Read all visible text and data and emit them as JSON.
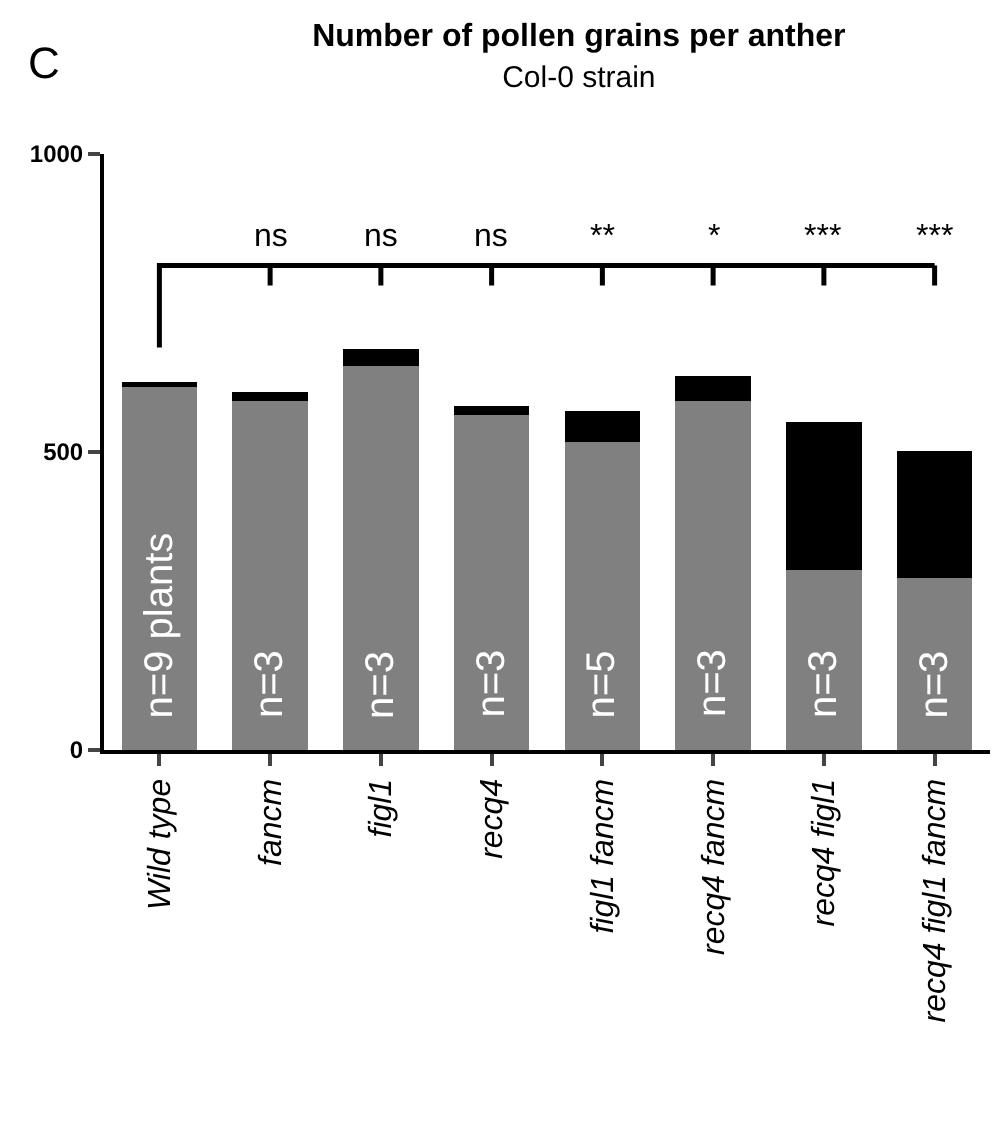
{
  "chart_data": {
    "type": "bar",
    "stacked": true,
    "title": "Number of pollen grains per anther",
    "subtitle": "Col-0 strain",
    "categories": [
      "Wild type",
      "fancm",
      "figl1",
      "recq4",
      "figl1 fancm",
      "recq4 fancm",
      "recq4 figl1",
      "recq4 figl1 fancm"
    ],
    "series": [
      {
        "color": "#808080",
        "values": [
          609,
          586,
          645,
          562,
          517,
          586,
          302,
          289
        ]
      },
      {
        "color": "#000000",
        "values": [
          9,
          15,
          27,
          16,
          51,
          42,
          249,
          212
        ]
      }
    ],
    "ylim": [
      0,
      1000
    ],
    "yticks": [
      0,
      500,
      1000
    ],
    "annotations": [
      "C",
      {
        "text": "n=9 plants",
        "x": "Wild type",
        "y": 0
      },
      {
        "text": "n=3",
        "x": "fancm",
        "y": 0
      },
      {
        "text": "n=3",
        "x": "figl1",
        "y": 0
      },
      {
        "text": "n=3",
        "x": "recq4",
        "y": 0
      },
      {
        "text": "n=5",
        "x": "figl1 fancm",
        "y": 0
      },
      {
        "text": "n=3",
        "x": "recq4 fancm",
        "y": 0
      },
      {
        "text": "n=3",
        "x": "recq4 figl1",
        "y": 0
      },
      {
        "text": "n=3",
        "x": "recq4 figl1 fancm",
        "y": 0
      },
      "ns",
      "ns",
      "ns",
      "**",
      "*",
      "***",
      "***"
    ]
  }
}
